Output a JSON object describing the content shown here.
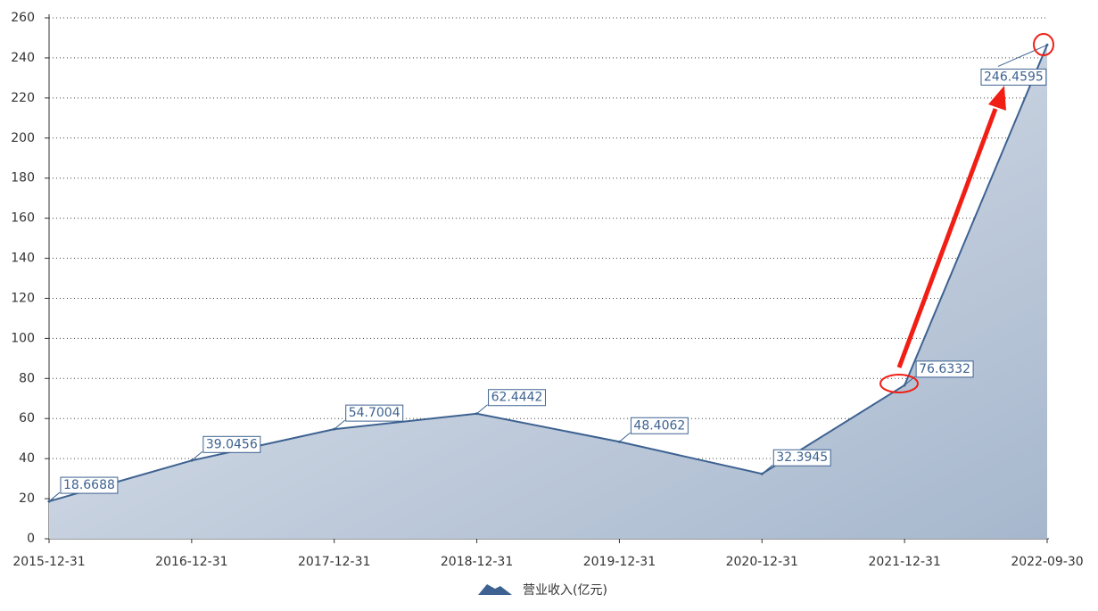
{
  "chart_data": {
    "type": "area",
    "categories": [
      "2015-12-31",
      "2016-12-31",
      "2017-12-31",
      "2018-12-31",
      "2019-12-31",
      "2020-12-31",
      "2021-12-31",
      "2022-09-30"
    ],
    "series": [
      {
        "name": "营业收入(亿元)",
        "color": "#3d6291",
        "values": [
          18.6688,
          39.0456,
          54.7004,
          62.4442,
          48.4062,
          32.3945,
          76.6332,
          246.4595
        ]
      }
    ],
    "ylim": [
      0,
      260
    ],
    "yticks": [
      0,
      20,
      40,
      60,
      80,
      100,
      120,
      140,
      160,
      180,
      200,
      220,
      240,
      260
    ],
    "grid": true,
    "legend": "bottom"
  }
}
